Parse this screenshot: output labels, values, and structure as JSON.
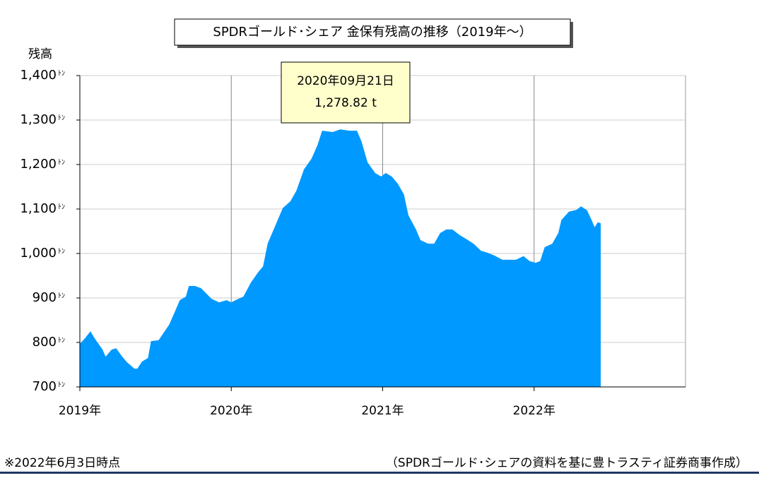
{
  "chart_data": {
    "type": "area",
    "title": "SPDRゴールド･シェア 金保有残高の推移（2019年～）",
    "y_label": "残高",
    "y_unit": "ﾄﾝ",
    "color": "#0099ff",
    "grid": true,
    "xlim": [
      2019,
      2023
    ],
    "xticks": [
      {
        "value": 2019,
        "label": "2019年"
      },
      {
        "value": 2020,
        "label": "2020年"
      },
      {
        "value": 2021,
        "label": "2021年"
      },
      {
        "value": 2022,
        "label": "2022年"
      }
    ],
    "ylim": [
      700,
      1400
    ],
    "yticks": [
      700,
      800,
      900,
      {
        "value": 1000,
        "label": "1,000"
      },
      {
        "value": 1100,
        "label": "1,100"
      },
      {
        "value": 1200,
        "label": "1,200"
      },
      {
        "value": 1300,
        "label": "1,300"
      },
      {
        "value": 1400,
        "label": "1,400"
      }
    ],
    "x": [
      2019.0,
      2019.03,
      2019.07,
      2019.1,
      2019.15,
      2019.17,
      2019.21,
      2019.24,
      2019.28,
      2019.31,
      2019.36,
      2019.38,
      2019.41,
      2019.45,
      2019.47,
      2019.52,
      2019.56,
      2019.59,
      2019.63,
      2019.66,
      2019.7,
      2019.72,
      2019.76,
      2019.8,
      2019.87,
      2019.92,
      2019.97,
      2020.0,
      2020.04,
      2020.08,
      2020.13,
      2020.18,
      2020.21,
      2020.24,
      2020.29,
      2020.34,
      2020.39,
      2020.43,
      2020.48,
      2020.53,
      2020.57,
      2020.6,
      2020.67,
      2020.72,
      2020.78,
      2020.83,
      2020.86,
      2020.9,
      2020.95,
      2020.99,
      2021.02,
      2021.06,
      2021.1,
      2021.14,
      2021.17,
      2021.22,
      2021.25,
      2021.3,
      2021.34,
      2021.38,
      2021.42,
      2021.46,
      2021.51,
      2021.55,
      2021.6,
      2021.65,
      2021.69,
      2021.74,
      2021.79,
      2021.83,
      2021.88,
      2021.93,
      2021.97,
      2022.01,
      2022.04,
      2022.07,
      2022.12,
      2022.16,
      2022.18,
      2022.23,
      2022.28,
      2022.31,
      2022.35,
      2022.38,
      2022.4,
      2022.42,
      2022.44
    ],
    "values": [
      797,
      808,
      825,
      808,
      784,
      768,
      784,
      787,
      768,
      756,
      741,
      741,
      757,
      765,
      803,
      805,
      825,
      840,
      871,
      895,
      903,
      927,
      927,
      922,
      898,
      890,
      895,
      890,
      897,
      903,
      935,
      959,
      971,
      1022,
      1062,
      1102,
      1117,
      1141,
      1189,
      1213,
      1244,
      1276,
      1273,
      1279,
      1276,
      1276,
      1252,
      1205,
      1181,
      1173,
      1181,
      1173,
      1157,
      1133,
      1086,
      1054,
      1030,
      1022,
      1022,
      1046,
      1054,
      1054,
      1041,
      1033,
      1022,
      1006,
      1002,
      995,
      986,
      986,
      986,
      994,
      983,
      979,
      983,
      1014,
      1022,
      1046,
      1075,
      1094,
      1098,
      1106,
      1097,
      1075,
      1059,
      1070,
      1068
    ],
    "annotation": {
      "date": "2020年09月21日",
      "value": "1,278.82 t"
    },
    "note": "※2022年6月3日時点",
    "source": "（SPDRゴールド･シェアの資料を基に豊トラスティ証券商事作成）"
  }
}
